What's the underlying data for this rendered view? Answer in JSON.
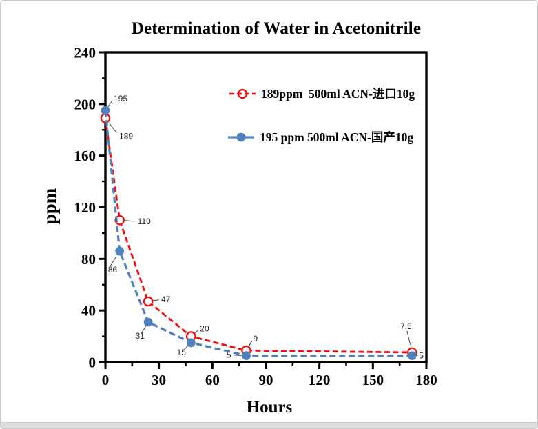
{
  "page": {
    "background_color": "#ffffff",
    "border_color": "#c9c9c9",
    "bottom_strip_color": "#dcdcdc"
  },
  "chart_data": {
    "type": "line",
    "title": "Determination of Water in Acetonitrile",
    "xlabel": "Hours",
    "ylabel": "ppm",
    "xlim": [
      0,
      180
    ],
    "ylim": [
      0,
      240
    ],
    "x_major_ticks": [
      0,
      30,
      60,
      90,
      120,
      150,
      180
    ],
    "x_minor_ticks": [
      15,
      45,
      75,
      105,
      135,
      165
    ],
    "y_major_ticks": [
      0,
      40,
      80,
      120,
      160,
      200,
      240
    ],
    "y_minor_ticks": [
      20,
      60,
      100,
      140,
      180,
      220
    ],
    "grid": false,
    "frame": true,
    "axis_color": "#000000",
    "legend_position": "inside-top-right",
    "x": [
      0,
      8,
      24,
      48,
      79,
      172
    ],
    "series": [
      {
        "name": "189ppm  500ml ACN-进口10g",
        "color": "#f40b0b",
        "marker": "open-circle",
        "line_style": "dashed",
        "values": [
          189,
          110,
          47,
          20,
          9,
          7.5
        ],
        "point_labels": [
          "189",
          "110",
          "47",
          "20",
          "9",
          "7.5"
        ],
        "label_offsets": [
          [
            20,
            30
          ],
          [
            26,
            6
          ],
          [
            19,
            1
          ],
          [
            13,
            -7
          ],
          [
            10,
            -13
          ],
          [
            -9,
            -34
          ]
        ],
        "label_anchors": [
          "start",
          "start",
          "start",
          "start",
          "start",
          "middle"
        ]
      },
      {
        "name": "195 ppm 500ml ACN-国产10g",
        "color": "#4f81bd",
        "marker": "filled-circle",
        "line_style": "dashed",
        "values": [
          195,
          86,
          31,
          15,
          5,
          5
        ],
        "point_labels": [
          "195",
          "86",
          "31",
          "15",
          "5",
          "5"
        ],
        "label_offsets": [
          [
            12,
            -13
          ],
          [
            -17,
            31
          ],
          [
            -12,
            24
          ],
          [
            -14,
            18
          ],
          [
            -22,
            3
          ],
          [
            10,
            4
          ]
        ],
        "label_anchors": [
          "start",
          "start",
          "middle",
          "middle",
          "end",
          "start"
        ]
      }
    ]
  }
}
